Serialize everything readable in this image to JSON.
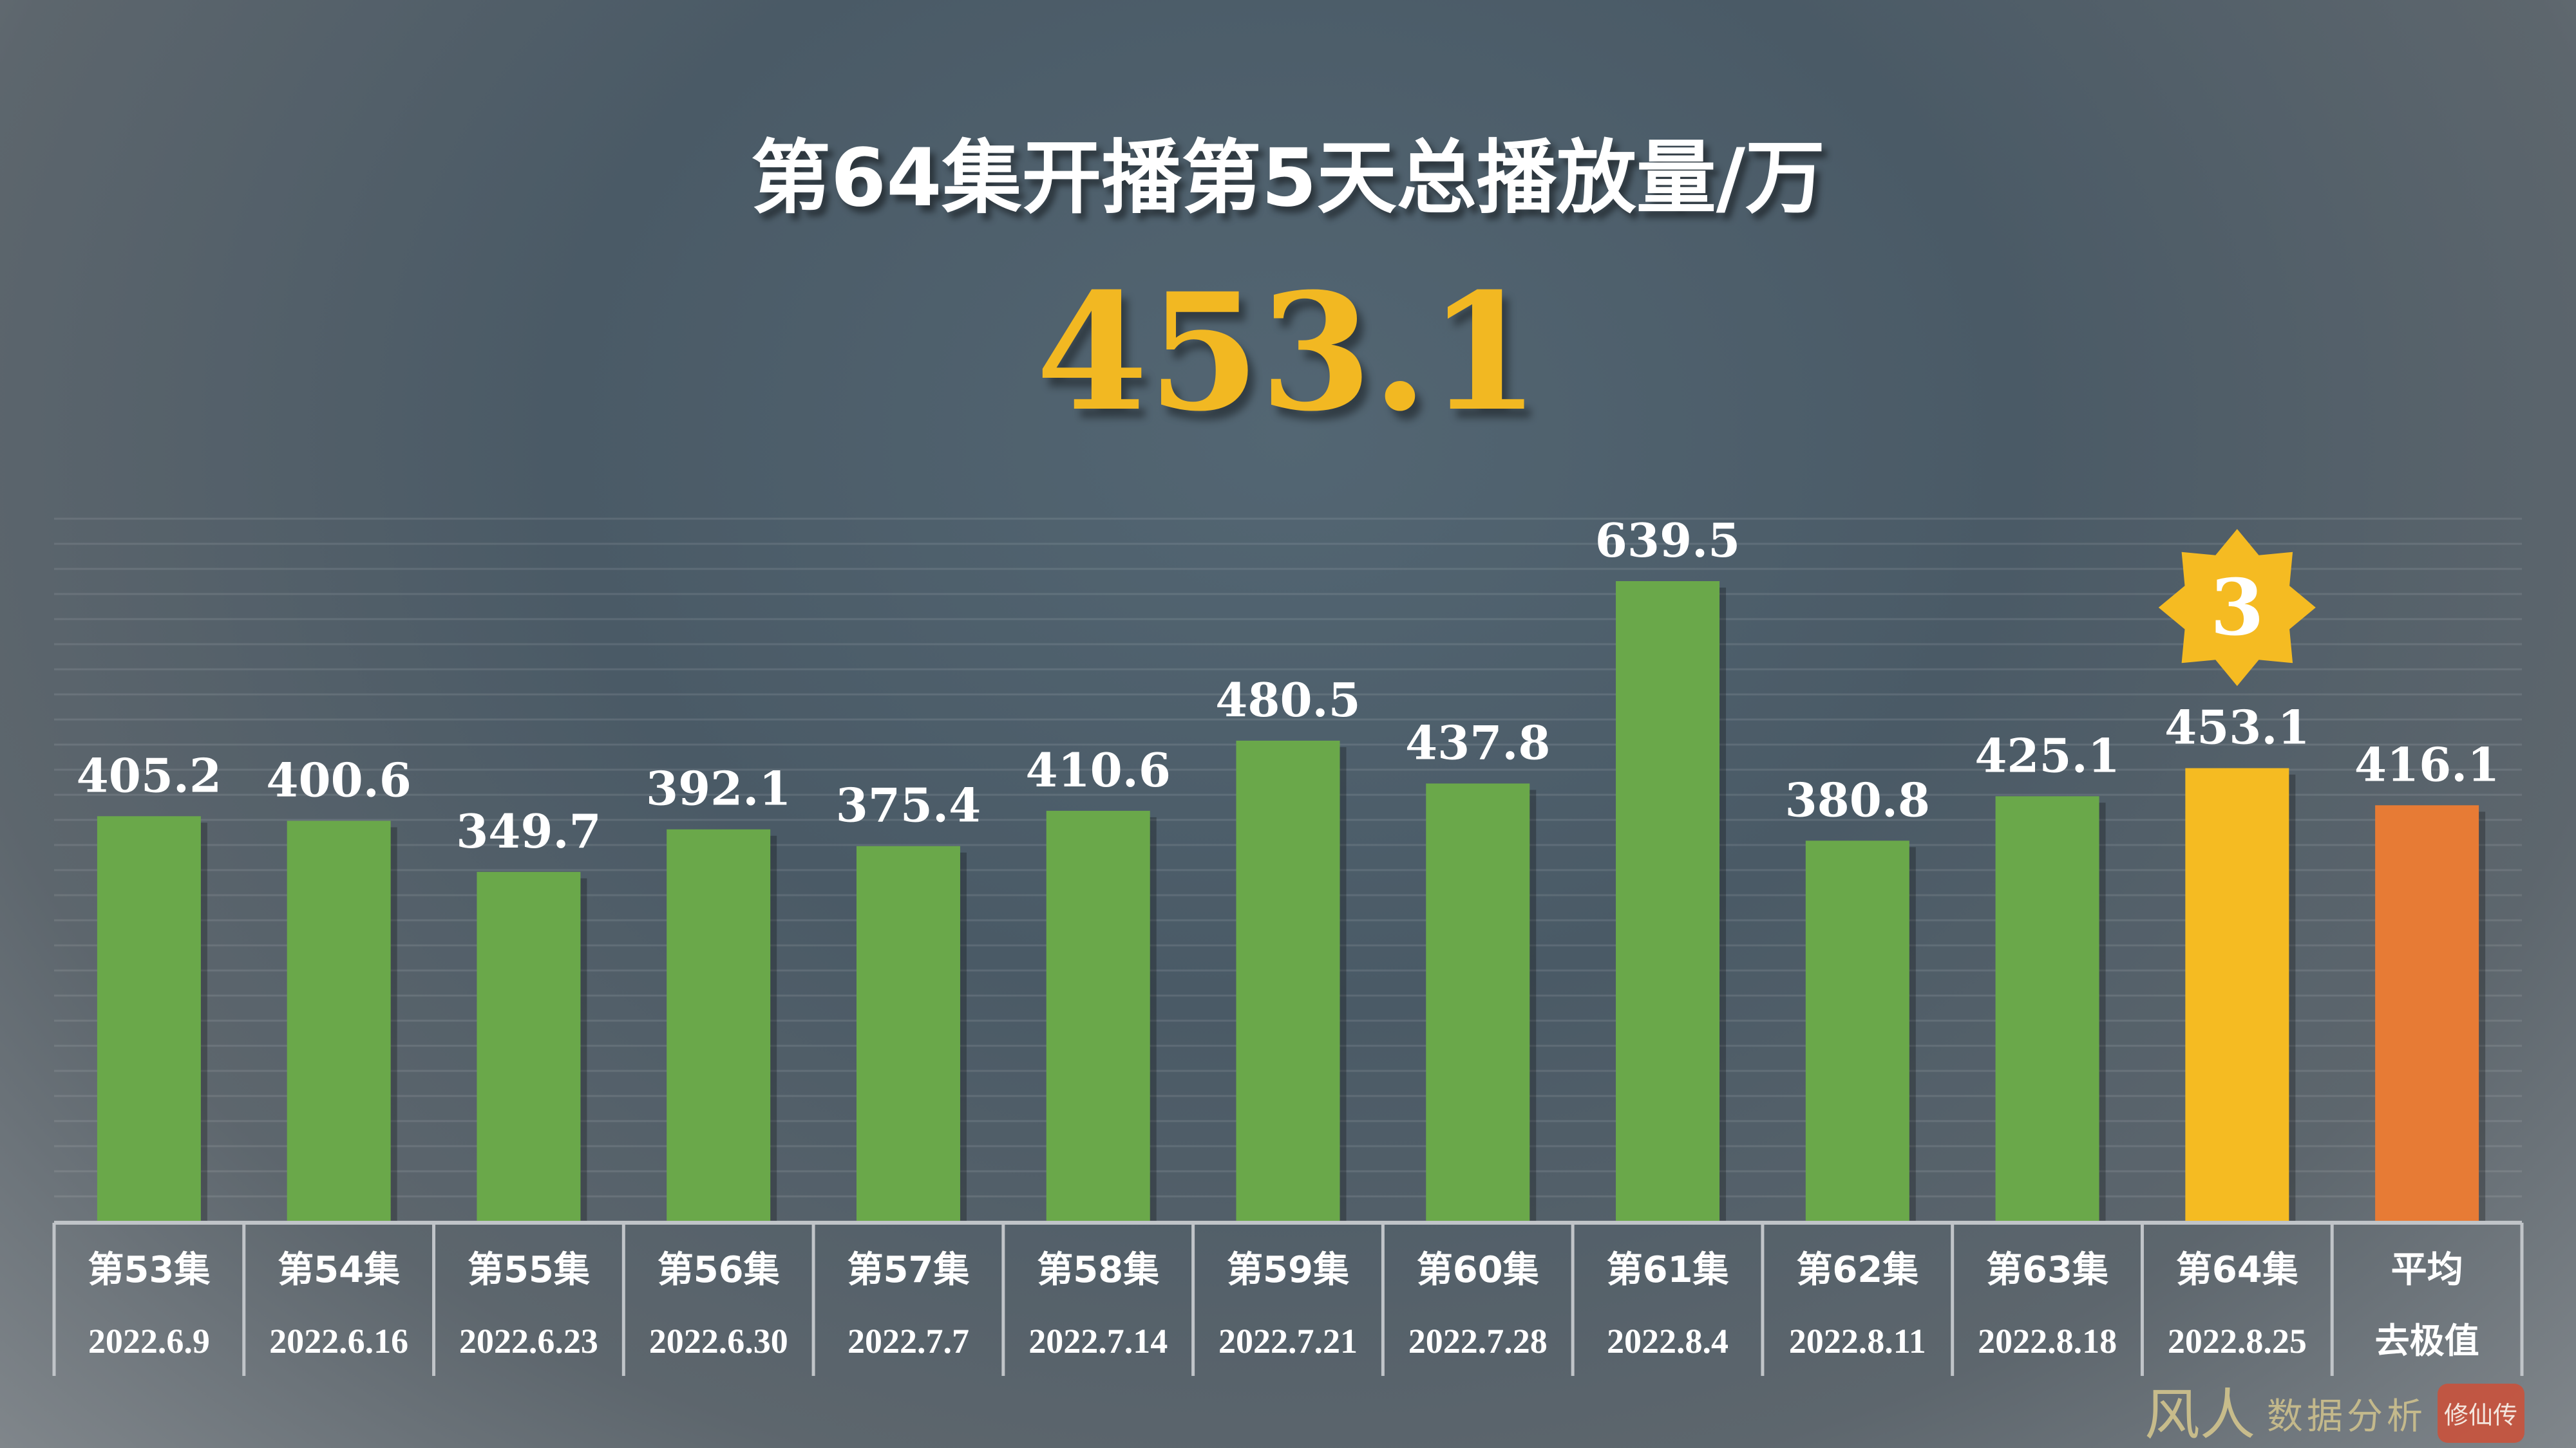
{
  "title": "第64集开播第5天总播放量/万",
  "highlight_value": "453.1",
  "colors": {
    "normal": "#6aa84a",
    "current": "#f5bb22",
    "average": "#e77b35",
    "title": "#ffffff",
    "highlight": "#f2b822"
  },
  "badge": {
    "icon": "star-badge-icon",
    "label": "3"
  },
  "watermark": {
    "text": "风人",
    "subtitle": "数据分析",
    "seal": "修仙传"
  },
  "chart_data": {
    "type": "bar",
    "title": "第64集开播第5天总播放量/万",
    "categories": [
      "第53集",
      "第54集",
      "第55集",
      "第56集",
      "第57集",
      "第58集",
      "第59集",
      "第60集",
      "第61集",
      "第62集",
      "第63集",
      "第64集",
      "平均"
    ],
    "sublabels": [
      "2022.6.9",
      "2022.6.16",
      "2022.6.23",
      "2022.6.30",
      "2022.7.7",
      "2022.7.14",
      "2022.7.21",
      "2022.7.28",
      "2022.8.4",
      "2022.8.11",
      "2022.8.18",
      "2022.8.25",
      "去极值"
    ],
    "values": [
      405.2,
      400.6,
      349.7,
      392.1,
      375.4,
      410.6,
      480.5,
      437.8,
      639.5,
      380.8,
      425.1,
      453.1,
      416.1
    ],
    "value_labels": [
      "405.2",
      "400.6",
      "349.7",
      "392.1",
      "375.4",
      "410.6",
      "480.5",
      "437.8",
      "639.5",
      "380.8",
      "425.1",
      "453.1",
      "416.1"
    ],
    "ylim": [
      0,
      700
    ],
    "grid": true,
    "legend": "none"
  }
}
